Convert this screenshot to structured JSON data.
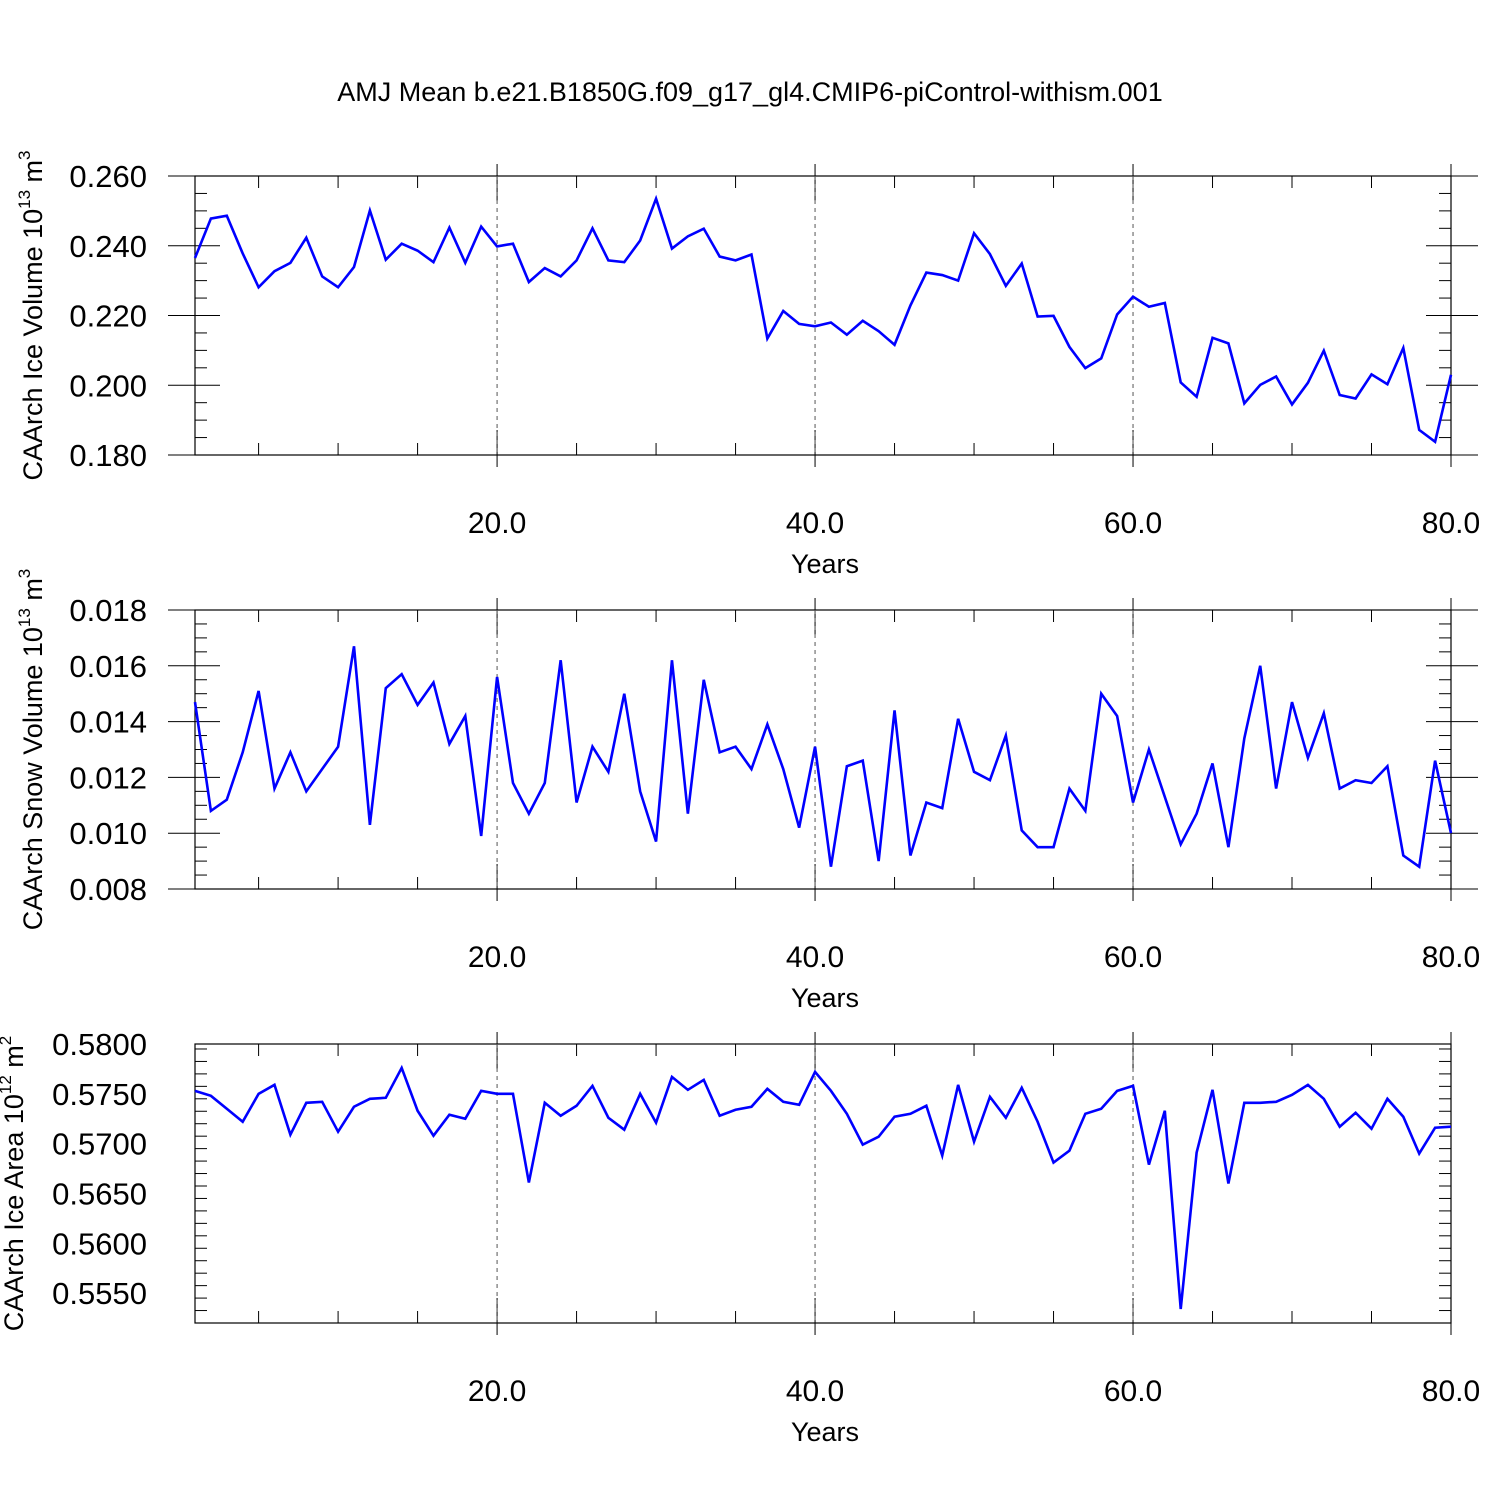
{
  "title": "AMJ Mean b.e21.B1850G.f09_g17_gl4.CMIP6-piControl-withism.001",
  "colors": {
    "line": "#0000ff",
    "axis": "#000000",
    "grid": "#555555",
    "background": "#ffffff"
  },
  "chart_data": [
    {
      "type": "line",
      "xlabel": "Years",
      "ylabel": {
        "text": "CAArch Ice Volume 10",
        "exp": "13",
        "unit": "m",
        "unit_exp": "3"
      },
      "xlim": [
        1,
        80
      ],
      "ylim": [
        0.18,
        0.26
      ],
      "grid": "x-only, dashed at labeled ticks",
      "x_ticks": [
        "20.0",
        "40.0",
        "60.0",
        "80.0"
      ],
      "y_ticks": [
        "0.260",
        "0.240",
        "0.220",
        "0.200",
        "0.180"
      ],
      "x": [
        1,
        2,
        3,
        4,
        5,
        6,
        7,
        8,
        9,
        10,
        11,
        12,
        13,
        14,
        15,
        16,
        17,
        18,
        19,
        20,
        21,
        22,
        23,
        24,
        25,
        26,
        27,
        28,
        29,
        30,
        31,
        32,
        33,
        34,
        35,
        36,
        37,
        38,
        39,
        40,
        41,
        42,
        43,
        44,
        45,
        46,
        47,
        48,
        49,
        50,
        51,
        52,
        53,
        54,
        55,
        56,
        57,
        58,
        59,
        60,
        61,
        62,
        63,
        64,
        65,
        66,
        67,
        68,
        69,
        70,
        71,
        72,
        73,
        74,
        75,
        76,
        77,
        78,
        79,
        80
      ],
      "values": [
        0.2365,
        0.2478,
        0.2486,
        0.2378,
        0.2281,
        0.2327,
        0.2351,
        0.2423,
        0.2312,
        0.2281,
        0.2339,
        0.2501,
        0.236,
        0.2406,
        0.2386,
        0.2353,
        0.2452,
        0.2351,
        0.2455,
        0.2398,
        0.2406,
        0.2296,
        0.2336,
        0.2312,
        0.2358,
        0.245,
        0.2358,
        0.2353,
        0.2415,
        0.2535,
        0.2392,
        0.2427,
        0.2449,
        0.2369,
        0.2358,
        0.2375,
        0.2134,
        0.2213,
        0.2176,
        0.2169,
        0.218,
        0.2145,
        0.2185,
        0.2155,
        0.2116,
        0.2229,
        0.2323,
        0.2316,
        0.23,
        0.2436,
        0.2376,
        0.2285,
        0.2349,
        0.2197,
        0.2199,
        0.211,
        0.2049,
        0.2077,
        0.2203,
        0.2254,
        0.2225,
        0.2236,
        0.2008,
        0.1967,
        0.2136,
        0.212,
        0.1948,
        0.2001,
        0.2025,
        0.1945,
        0.2007,
        0.2099,
        0.1972,
        0.1962,
        0.2031,
        0.2003,
        0.2107,
        0.1872,
        0.1838,
        0.203
      ]
    },
    {
      "type": "line",
      "xlabel": "Years",
      "ylabel": {
        "text": "CAArch Snow Volume 10",
        "exp": "13",
        "unit": "m",
        "unit_exp": "3"
      },
      "xlim": [
        1,
        80
      ],
      "ylim": [
        0.008,
        0.018
      ],
      "grid": "x-only, dashed at labeled ticks",
      "x_ticks": [
        "20.0",
        "40.0",
        "60.0",
        "80.0"
      ],
      "y_ticks": [
        "0.018",
        "0.016",
        "0.014",
        "0.012",
        "0.010",
        "0.008"
      ],
      "x": [
        1,
        2,
        3,
        4,
        5,
        6,
        7,
        8,
        9,
        10,
        11,
        12,
        13,
        14,
        15,
        16,
        17,
        18,
        19,
        20,
        21,
        22,
        23,
        24,
        25,
        26,
        27,
        28,
        29,
        30,
        31,
        32,
        33,
        34,
        35,
        36,
        37,
        38,
        39,
        40,
        41,
        42,
        43,
        44,
        45,
        46,
        47,
        48,
        49,
        50,
        51,
        52,
        53,
        54,
        55,
        56,
        57,
        58,
        59,
        60,
        61,
        62,
        63,
        64,
        65,
        66,
        67,
        68,
        69,
        70,
        71,
        72,
        73,
        74,
        75,
        76,
        77,
        78,
        79,
        80
      ],
      "values": [
        0.0147,
        0.0108,
        0.0112,
        0.0129,
        0.0151,
        0.0116,
        0.0129,
        0.0115,
        0.0123,
        0.0131,
        0.0167,
        0.0103,
        0.0152,
        0.0157,
        0.0146,
        0.0154,
        0.0132,
        0.0142,
        0.0099,
        0.0156,
        0.0118,
        0.0107,
        0.0118,
        0.0162,
        0.0111,
        0.0131,
        0.0122,
        0.015,
        0.0115,
        0.0097,
        0.0162,
        0.0107,
        0.0155,
        0.0129,
        0.0131,
        0.0123,
        0.0139,
        0.0123,
        0.0102,
        0.0131,
        0.0088,
        0.0124,
        0.0126,
        0.009,
        0.0144,
        0.0092,
        0.0111,
        0.0109,
        0.0141,
        0.0122,
        0.0119,
        0.0135,
        0.0101,
        0.0095,
        0.0095,
        0.0116,
        0.0108,
        0.015,
        0.0142,
        0.0111,
        0.013,
        0.0113,
        0.0096,
        0.0107,
        0.0125,
        0.0095,
        0.0134,
        0.016,
        0.0116,
        0.0147,
        0.0127,
        0.0143,
        0.0116,
        0.0119,
        0.0118,
        0.0124,
        0.0092,
        0.0088,
        0.0126,
        0.01
      ]
    },
    {
      "type": "line",
      "xlabel": "Years",
      "ylabel": {
        "text": "CAArch Ice Area 10",
        "exp": "12",
        "unit": "m",
        "unit_exp": "2"
      },
      "xlim": [
        1,
        80
      ],
      "ylim": [
        0.552,
        0.58
      ],
      "grid": "x-only, dashed at labeled ticks",
      "x_ticks": [
        "20.0",
        "40.0",
        "60.0",
        "80.0"
      ],
      "y_ticks": [
        "0.5800",
        "0.5750",
        "0.5700",
        "0.5650",
        "0.5600",
        "0.5550"
      ],
      "x": [
        1,
        2,
        3,
        4,
        5,
        6,
        7,
        8,
        9,
        10,
        11,
        12,
        13,
        14,
        15,
        16,
        17,
        18,
        19,
        20,
        21,
        22,
        23,
        24,
        25,
        26,
        27,
        28,
        29,
        30,
        31,
        32,
        33,
        34,
        35,
        36,
        37,
        38,
        39,
        40,
        41,
        42,
        43,
        44,
        45,
        46,
        47,
        48,
        49,
        50,
        51,
        52,
        53,
        54,
        55,
        56,
        57,
        58,
        59,
        60,
        61,
        62,
        63,
        64,
        65,
        66,
        67,
        68,
        69,
        70,
        71,
        72,
        73,
        74,
        75,
        76,
        77,
        78,
        79,
        80
      ],
      "values": [
        0.5753,
        0.5748,
        0.5735,
        0.5722,
        0.575,
        0.5759,
        0.5709,
        0.5741,
        0.5742,
        0.5712,
        0.5737,
        0.5745,
        0.5746,
        0.5776,
        0.5733,
        0.5708,
        0.5729,
        0.5725,
        0.5753,
        0.575,
        0.575,
        0.5661,
        0.5741,
        0.5728,
        0.5738,
        0.5758,
        0.5726,
        0.5714,
        0.575,
        0.5721,
        0.5767,
        0.5754,
        0.5764,
        0.5728,
        0.5734,
        0.5737,
        0.5755,
        0.5742,
        0.5739,
        0.5772,
        0.5753,
        0.573,
        0.5699,
        0.5707,
        0.5727,
        0.573,
        0.5738,
        0.5688,
        0.5759,
        0.5702,
        0.5747,
        0.5726,
        0.5756,
        0.5722,
        0.5681,
        0.5693,
        0.573,
        0.5735,
        0.5753,
        0.5758,
        0.5679,
        0.5733,
        0.5534,
        0.5691,
        0.5754,
        0.566,
        0.5741,
        0.5741,
        0.5742,
        0.5749,
        0.5759,
        0.5745,
        0.5717,
        0.5731,
        0.5715,
        0.5745,
        0.5727,
        0.569,
        0.5716,
        0.5717
      ]
    }
  ]
}
